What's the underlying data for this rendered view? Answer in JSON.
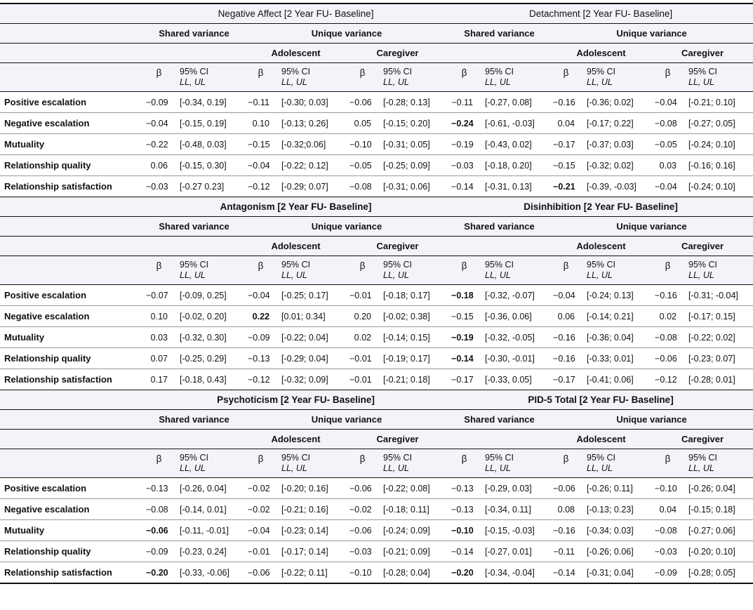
{
  "header_labels": {
    "shared": "Shared variance",
    "unique": "Unique variance",
    "adolescent": "Adolescent",
    "caregiver": "Caregiver",
    "beta": "β",
    "ci": "95% CI",
    "llul": "LL, UL"
  },
  "colors": {
    "header_bg": "#f5f2f9",
    "rule_dark": "#111111",
    "rule_light": "#9a96a0"
  },
  "panels": [
    {
      "left_title": "Negative Affect [2 Year FU- Baseline]",
      "right_title": "Detachment [2 Year FU- Baseline]",
      "title_bold": false,
      "rows": [
        {
          "label": "Positive escalation",
          "bold": [],
          "c": [
            "−0.09",
            "[-0.34, 0.19]",
            "−0.11",
            "[-0.30; 0.03]",
            "−0.06",
            "[-0.28; 0.13]",
            "−0.11",
            "[-0.27, 0.08]",
            "−0.16",
            "[-0.36; 0.02]",
            "−0.04",
            "[-0.21; 0.10]"
          ]
        },
        {
          "label": "Negative escalation",
          "bold": [
            6
          ],
          "c": [
            "−0.04",
            "[-0.15, 0.19]",
            "0.10",
            "[-0.13; 0.26]",
            "0.05",
            "[-0.15; 0.20]",
            "−0.24",
            "[-0.61, -0.03]",
            "0.04",
            "[-0.17; 0.22]",
            "−0.08",
            "[-0.27; 0.05]"
          ]
        },
        {
          "label": "Mutuality",
          "bold": [],
          "c": [
            "−0.22",
            "[-0.48, 0.03]",
            "−0.15",
            "[-0.32;0.06]",
            "−0.10",
            "[-0.31; 0.05]",
            "−0.19",
            "[-0.43, 0.02]",
            "−0.17",
            "[-0.37; 0.03]",
            "−0.05",
            "[-0.24; 0.10]"
          ]
        },
        {
          "label": "Relationship quality",
          "bold": [],
          "c": [
            "0.06",
            "[-0.15, 0.30]",
            "−0.04",
            "[-0.22; 0.12]",
            "−0.05",
            "[-0.25; 0.09]",
            "−0.03",
            "[-0.18, 0.20]",
            "−0.15",
            "[-0.32; 0.02]",
            "0.03",
            "[-0.16; 0.16]"
          ]
        },
        {
          "label": "Relationship satisfaction",
          "bold": [
            8
          ],
          "c": [
            "−0.03",
            "[-0.27 0.23]",
            "−0.12",
            "[-0.29; 0.07]",
            "−0.08",
            "[-0.31; 0.06]",
            "−0.14",
            "[-0.31, 0.13]",
            "−0.21",
            "[-0.39, -0.03]",
            "−0.04",
            "[-0.24; 0.10]"
          ]
        }
      ]
    },
    {
      "left_title": "Antagonism [2 Year FU- Baseline]",
      "right_title": "Disinhibition [2 Year FU- Baseline]",
      "title_bold": true,
      "rows": [
        {
          "label": "Positive escalation",
          "bold": [
            6
          ],
          "c": [
            "−0.07",
            "[-0.09, 0.25]",
            "−0.04",
            "[-0.25; 0.17]",
            "−0.01",
            "[-0.18; 0.17]",
            "−0.18",
            "[-0.32, -0.07]",
            "−0.04",
            "[-0.24; 0.13]",
            "−0.16",
            "[-0.31; -0.04]"
          ]
        },
        {
          "label": "Negative escalation",
          "bold": [
            2
          ],
          "c": [
            "0.10",
            "[-0.02, 0.20]",
            "0.22",
            "[0.01; 0.34]",
            "0.20",
            "[-0.02; 0.38]",
            "−0.15",
            "[-0.36, 0.06]",
            "0.06",
            "[-0.14; 0.21]",
            "0.02",
            "[-0.17; 0.15]"
          ]
        },
        {
          "label": "Mutuality",
          "bold": [
            6
          ],
          "c": [
            "0.03",
            "[-0.32, 0.30]",
            "−0.09",
            "[-0.22; 0.04]",
            "0.02",
            "[-0.14; 0.15]",
            "−0.19",
            "[-0.32, -0.05]",
            "−0.16",
            "[-0.36; 0.04]",
            "−0.08",
            "[-0.22; 0.02]"
          ]
        },
        {
          "label": "Relationship quality",
          "bold": [
            6
          ],
          "c": [
            "0.07",
            "[-0.25, 0.29]",
            "−0.13",
            "[-0.29; 0.04]",
            "−0.01",
            "[-0.19; 0.17]",
            "−0.14",
            "[-0.30, -0.01]",
            "−0.16",
            "[-0.33; 0.01]",
            "−0.06",
            "[-0.23; 0.07]"
          ]
        },
        {
          "label": "Relationship satisfaction",
          "bold": [],
          "c": [
            "0.17",
            "[-0.18, 0.43]",
            "−0.12",
            "[-0.32; 0.09]",
            "−0.01",
            "[-0.21; 0.18]",
            "−0.17",
            "[-0.33, 0.05]",
            "−0.17",
            "[-0.41; 0.06]",
            "−0.12",
            "[-0.28; 0.01]"
          ]
        }
      ]
    },
    {
      "left_title": "Psychoticism [2 Year FU- Baseline]",
      "right_title": "PID-5 Total [2 Year FU- Baseline]",
      "title_bold": true,
      "rows": [
        {
          "label": "Positive escalation",
          "bold": [],
          "c": [
            "−0.13",
            "[-0.26, 0.04]",
            "−0.02",
            "[-0.20; 0.16]",
            "−0.06",
            "[-0.22; 0.08]",
            "−0.13",
            "[-0.29, 0.03]",
            "−0.06",
            "[-0.26; 0.11]",
            "−0.10",
            "[-0.26; 0.04]"
          ]
        },
        {
          "label": "Negative escalation",
          "bold": [],
          "c": [
            "−0.08",
            "[-0.14, 0.01]",
            "−0.02",
            "[-0.21; 0.16]",
            "−0.02",
            "[-0.18; 0.11]",
            "−0.13",
            "[-0.34, 0.11]",
            "0.08",
            "[-0.13; 0.23]",
            "0.04",
            "[-0.15; 0.18]"
          ]
        },
        {
          "label": "Mutuality",
          "bold": [
            0,
            6
          ],
          "c": [
            "−0.06",
            "[-0.11, -0.01]",
            "−0.04",
            "[-0.23; 0.14]",
            "−0.06",
            "[-0.24; 0.09]",
            "−0.10",
            "[-0.15, -0.03]",
            "−0.16",
            "[-0.34; 0.03]",
            "−0.08",
            "[-0.27; 0.06]"
          ]
        },
        {
          "label": "Relationship quality",
          "bold": [],
          "c": [
            "−0.09",
            "[-0.23, 0.24]",
            "−0.01",
            "[-0.17; 0.14]",
            "−0.03",
            "[-0.21; 0.09]",
            "−0.14",
            "[-0.27, 0.01]",
            "−0.11",
            "[-0.26; 0.06]",
            "−0.03",
            "[-0.20; 0.10]"
          ]
        },
        {
          "label": "Relationship satisfaction",
          "bold": [
            0,
            6
          ],
          "c": [
            "−0.20",
            "[-0.33, -0.06]",
            "−0.06",
            "[-0.22; 0.11]",
            "−0.10",
            "[-0.28; 0.04]",
            "−0.20",
            "[-0.34, -0.04]",
            "−0.14",
            "[-0.31; 0.04]",
            "−0.09",
            "[-0.28; 0.05]"
          ]
        }
      ]
    }
  ]
}
